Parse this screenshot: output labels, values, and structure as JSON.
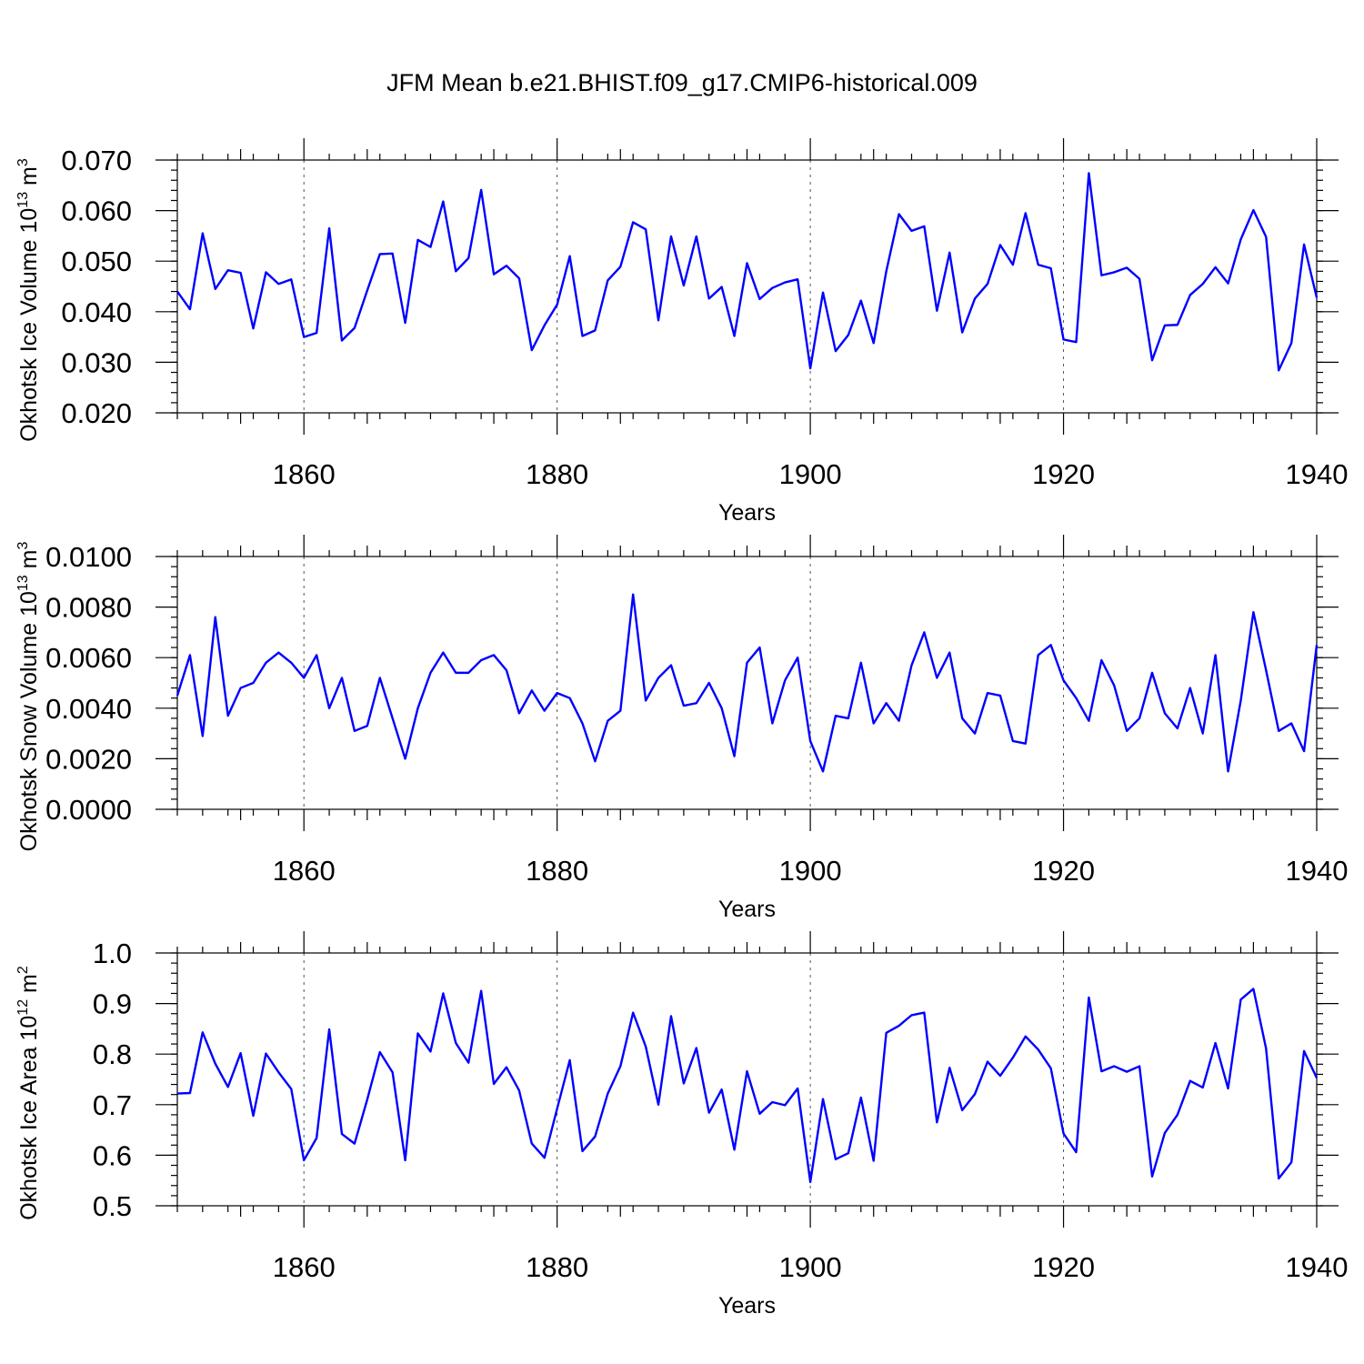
{
  "figure_title": "JFM Mean b.e21.BHIST.f09_g17.CMIP6-historical.009",
  "colors": {
    "series": "#0000ff",
    "axes": "#000000"
  },
  "chart_data": [
    {
      "type": "line",
      "title": "",
      "ylabel": "Okhotsk Ice Volume 10",
      "ylabel_exp": "13",
      "ylabel_unit": " m",
      "ylabel_unit_exp": "3",
      "xlabel": "Years",
      "xlim": [
        1850,
        1940
      ],
      "ylim": [
        0.02,
        0.07
      ],
      "x_major_ticks": [
        1860,
        1880,
        1900,
        1920,
        1940
      ],
      "x_tick_labels": [
        "1860",
        "1880",
        "1900",
        "1920",
        "1940"
      ],
      "y_major_ticks": [
        0.02,
        0.03,
        0.04,
        0.05,
        0.06,
        0.07
      ],
      "y_tick_labels": [
        "0.020",
        "0.030",
        "0.040",
        "0.050",
        "0.060",
        "0.070"
      ],
      "y_minor_step": 0.002,
      "x_start": 1850,
      "values": [
        0.044,
        0.0405,
        0.0555,
        0.0445,
        0.0482,
        0.0477,
        0.0367,
        0.0478,
        0.0455,
        0.0464,
        0.035,
        0.0358,
        0.0565,
        0.0343,
        0.0368,
        0.0442,
        0.0514,
        0.0515,
        0.0378,
        0.0542,
        0.0528,
        0.0618,
        0.048,
        0.0506,
        0.0641,
        0.0474,
        0.0491,
        0.0466,
        0.0324,
        0.0373,
        0.0414,
        0.051,
        0.0352,
        0.0363,
        0.0462,
        0.0489,
        0.0577,
        0.0563,
        0.0383,
        0.0549,
        0.0452,
        0.0549,
        0.0426,
        0.0449,
        0.0352,
        0.0496,
        0.0425,
        0.0447,
        0.0458,
        0.0464,
        0.0288,
        0.0438,
        0.0322,
        0.0354,
        0.0422,
        0.0338,
        0.048,
        0.0593,
        0.056,
        0.0569,
        0.0402,
        0.0517,
        0.0359,
        0.0426,
        0.0455,
        0.0532,
        0.0493,
        0.0595,
        0.0493,
        0.0486,
        0.0345,
        0.034,
        0.0674,
        0.0472,
        0.0478,
        0.0487,
        0.0465,
        0.0304,
        0.0373,
        0.0374,
        0.0433,
        0.0455,
        0.0488,
        0.0456,
        0.0543,
        0.0601,
        0.0548,
        0.0284,
        0.0338,
        0.0533,
        0.0428
      ]
    },
    {
      "type": "line",
      "title": "",
      "ylabel": "Okhotsk Snow Volume 10",
      "ylabel_exp": "13",
      "ylabel_unit": " m",
      "ylabel_unit_exp": "3",
      "xlabel": "Years",
      "xlim": [
        1850,
        1940
      ],
      "ylim": [
        0.0,
        0.01
      ],
      "x_major_ticks": [
        1860,
        1880,
        1900,
        1920,
        1940
      ],
      "x_tick_labels": [
        "1860",
        "1880",
        "1900",
        "1920",
        "1940"
      ],
      "y_major_ticks": [
        0.0,
        0.002,
        0.004,
        0.006,
        0.008,
        0.01
      ],
      "y_tick_labels": [
        "0.0000",
        "0.0020",
        "0.0040",
        "0.0060",
        "0.0080",
        "0.0100"
      ],
      "y_minor_step": 0.0004,
      "x_start": 1850,
      "values": [
        0.0045,
        0.0061,
        0.0029,
        0.0076,
        0.0037,
        0.0048,
        0.005,
        0.0058,
        0.0062,
        0.0058,
        0.0052,
        0.0061,
        0.004,
        0.0052,
        0.0031,
        0.0033,
        0.0052,
        0.0036,
        0.002,
        0.004,
        0.0054,
        0.0062,
        0.0054,
        0.0054,
        0.0059,
        0.0061,
        0.0055,
        0.0038,
        0.0047,
        0.0039,
        0.0046,
        0.0044,
        0.0034,
        0.0019,
        0.0035,
        0.0039,
        0.0085,
        0.0043,
        0.0052,
        0.0057,
        0.0041,
        0.0042,
        0.005,
        0.004,
        0.0021,
        0.0058,
        0.0064,
        0.0034,
        0.0051,
        0.006,
        0.0027,
        0.0015,
        0.0037,
        0.0036,
        0.0058,
        0.0034,
        0.0042,
        0.0035,
        0.0057,
        0.007,
        0.0052,
        0.0062,
        0.0036,
        0.003,
        0.0046,
        0.0045,
        0.0027,
        0.0026,
        0.0061,
        0.0065,
        0.0051,
        0.0044,
        0.0035,
        0.0059,
        0.0049,
        0.0031,
        0.0036,
        0.0054,
        0.0038,
        0.0032,
        0.0048,
        0.003,
        0.0061,
        0.0015,
        0.0043,
        0.0078,
        0.0055,
        0.0031,
        0.0034,
        0.0023,
        0.0065
      ]
    },
    {
      "type": "line",
      "title": "",
      "ylabel": "Okhotsk Ice Area 10",
      "ylabel_exp": "12",
      "ylabel_unit": " m",
      "ylabel_unit_exp": "2",
      "xlabel": "Years",
      "xlim": [
        1850,
        1940
      ],
      "ylim": [
        0.5,
        1.0
      ],
      "x_major_ticks": [
        1860,
        1880,
        1900,
        1920,
        1940
      ],
      "x_tick_labels": [
        "1860",
        "1880",
        "1900",
        "1920",
        "1940"
      ],
      "y_major_ticks": [
        0.5,
        0.6,
        0.7,
        0.8,
        0.9,
        1.0
      ],
      "y_tick_labels": [
        "0.5",
        "0.6",
        "0.7",
        "0.8",
        "0.9",
        "1.0"
      ],
      "y_minor_step": 0.02,
      "x_start": 1850,
      "values": [
        0.722,
        0.723,
        0.843,
        0.781,
        0.735,
        0.802,
        0.678,
        0.801,
        0.764,
        0.731,
        0.59,
        0.634,
        0.849,
        0.642,
        0.623,
        0.71,
        0.804,
        0.764,
        0.59,
        0.841,
        0.805,
        0.92,
        0.822,
        0.783,
        0.925,
        0.741,
        0.774,
        0.728,
        0.623,
        0.595,
        0.692,
        0.788,
        0.608,
        0.637,
        0.722,
        0.776,
        0.882,
        0.815,
        0.7,
        0.875,
        0.742,
        0.812,
        0.684,
        0.73,
        0.611,
        0.766,
        0.682,
        0.705,
        0.699,
        0.732,
        0.547,
        0.711,
        0.592,
        0.604,
        0.714,
        0.589,
        0.842,
        0.856,
        0.877,
        0.882,
        0.665,
        0.773,
        0.689,
        0.721,
        0.785,
        0.757,
        0.793,
        0.835,
        0.809,
        0.772,
        0.643,
        0.606,
        0.912,
        0.766,
        0.776,
        0.765,
        0.776,
        0.558,
        0.644,
        0.68,
        0.747,
        0.734,
        0.822,
        0.732,
        0.908,
        0.929,
        0.811,
        0.554,
        0.586,
        0.806,
        0.753
      ]
    }
  ]
}
